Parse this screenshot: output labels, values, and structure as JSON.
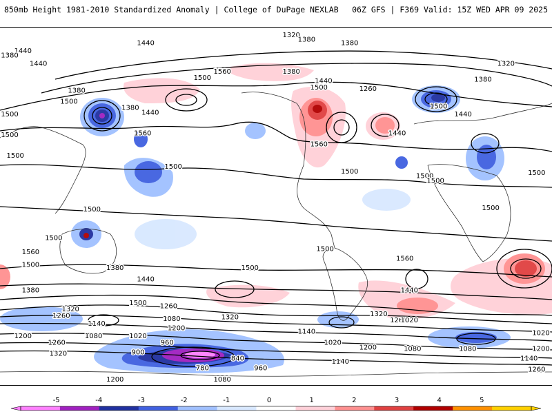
{
  "header": {
    "title_left": "850mb Height 1981-2010 Standardized Anomaly | College of DuPage NEXLAB",
    "title_right": "06Z GFS | F369 Valid: 15Z WED APR 09 2025"
  },
  "colorbar": {
    "ticks": [
      "-5",
      "-4",
      "-3",
      "-2",
      "-1",
      "0",
      "1",
      "2",
      "3",
      "4",
      "5"
    ],
    "colors": [
      "#ff80ff",
      "#a020c0",
      "#2030a0",
      "#4060e0",
      "#a0c0ff",
      "#d8e8ff",
      "#ffffff",
      "#ffd0d8",
      "#ff9090",
      "#e04040",
      "#b00000",
      "#ff9000",
      "#ffd000"
    ]
  },
  "map": {
    "contour_labels": [
      {
        "text": "1320",
        "lon": 10,
        "lat": 84
      },
      {
        "text": "1380",
        "lon": 20,
        "lat": 81
      },
      {
        "text": "1440",
        "lon": -85,
        "lat": 79
      },
      {
        "text": "1440",
        "lon": -165,
        "lat": 74
      },
      {
        "text": "1380",
        "lon": -180,
        "lat": 71
      },
      {
        "text": "1320",
        "lon": 150,
        "lat": 66
      },
      {
        "text": "1440",
        "lon": -155,
        "lat": 66
      },
      {
        "text": "1380",
        "lon": 135,
        "lat": 56
      },
      {
        "text": "1500",
        "lon": -135,
        "lat": 42
      },
      {
        "text": "1380",
        "lon": -130,
        "lat": 49
      },
      {
        "text": "1500",
        "lon": 106,
        "lat": 39
      },
      {
        "text": "1440",
        "lon": 122,
        "lat": 34
      },
      {
        "text": "1380",
        "lon": -95,
        "lat": 38
      },
      {
        "text": "1440",
        "lon": -82,
        "lat": 35
      },
      {
        "text": "1560",
        "lon": -87,
        "lat": 22
      },
      {
        "text": "1500",
        "lon": -48,
        "lat": 57
      },
      {
        "text": "1560",
        "lon": -35,
        "lat": 61
      },
      {
        "text": "1380",
        "lon": 10,
        "lat": 61
      },
      {
        "text": "1440",
        "lon": 31,
        "lat": 55
      },
      {
        "text": "1500",
        "lon": 28,
        "lat": 51
      },
      {
        "text": "1380",
        "lon": 48,
        "lat": 79
      },
      {
        "text": "1260",
        "lon": 60,
        "lat": 50
      },
      {
        "text": "1440",
        "lon": 79,
        "lat": 22
      },
      {
        "text": "1560",
        "lon": 28,
        "lat": 15
      },
      {
        "text": "1500",
        "lon": 48,
        "lat": -2
      },
      {
        "text": "1500",
        "lon": 97,
        "lat": -5
      },
      {
        "text": "1500",
        "lon": 104,
        "lat": -8
      },
      {
        "text": "1500",
        "lon": -67,
        "lat": 1
      },
      {
        "text": "1500",
        "lon": -120,
        "lat": -26
      },
      {
        "text": "1500",
        "lon": -145,
        "lat": -44
      },
      {
        "text": "1500",
        "lon": 140,
        "lat": -25
      },
      {
        "text": "1500",
        "lon": 32,
        "lat": -51
      },
      {
        "text": "1500",
        "lon": -17,
        "lat": -63
      },
      {
        "text": "1500",
        "lon": -160,
        "lat": -61
      },
      {
        "text": "1560",
        "lon": 84,
        "lat": -57
      },
      {
        "text": "1560",
        "lon": -160,
        "lat": -53
      },
      {
        "text": "1440",
        "lon": 87,
        "lat": -77
      },
      {
        "text": "1440",
        "lon": -85,
        "lat": -70
      },
      {
        "text": "1380",
        "lon": -105,
        "lat": -63
      },
      {
        "text": "1380",
        "lon": -160,
        "lat": -77
      },
      {
        "text": "1500",
        "lon": -90,
        "lat": -85
      },
      {
        "text": "1320",
        "lon": 67,
        "lat": -92
      },
      {
        "text": "1260",
        "lon": 80,
        "lat": -96
      },
      {
        "text": "1320",
        "lon": -134,
        "lat": -89
      },
      {
        "text": "1260",
        "lon": -140,
        "lat": -93
      },
      {
        "text": "1140",
        "lon": -117,
        "lat": -98
      },
      {
        "text": "1200",
        "lon": -65,
        "lat": -101
      },
      {
        "text": "1320",
        "lon": -30,
        "lat": -94
      },
      {
        "text": "1260",
        "lon": -70,
        "lat": -87
      },
      {
        "text": "1140",
        "lon": 20,
        "lat": -103
      },
      {
        "text": "1020",
        "lon": 87,
        "lat": -96
      },
      {
        "text": "1020",
        "lon": 175,
        "lat": -104
      },
      {
        "text": "1080",
        "lon": 89,
        "lat": -114
      },
      {
        "text": "1200",
        "lon": -165,
        "lat": -106
      },
      {
        "text": "1260",
        "lon": -143,
        "lat": -110
      },
      {
        "text": "1320",
        "lon": -142,
        "lat": -117
      },
      {
        "text": "1080",
        "lon": -119,
        "lat": -106
      },
      {
        "text": "1020",
        "lon": -90,
        "lat": -106
      },
      {
        "text": "1080",
        "lon": -68,
        "lat": -95
      },
      {
        "text": "960",
        "lon": -71,
        "lat": -110
      },
      {
        "text": "900",
        "lon": -90,
        "lat": -116
      },
      {
        "text": "840",
        "lon": -25,
        "lat": -120
      },
      {
        "text": "780",
        "lon": -48,
        "lat": -126
      },
      {
        "text": "960",
        "lon": -10,
        "lat": -126
      },
      {
        "text": "1080",
        "lon": -35,
        "lat": -134
      },
      {
        "text": "1200",
        "lon": -105,
        "lat": -134
      },
      {
        "text": "1020",
        "lon": 37,
        "lat": -110
      },
      {
        "text": "1200",
        "lon": 60,
        "lat": -113
      },
      {
        "text": "1080",
        "lon": 125,
        "lat": -114
      },
      {
        "text": "1140",
        "lon": 165,
        "lat": -120
      },
      {
        "text": "1260",
        "lon": 170,
        "lat": -127
      },
      {
        "text": "1200",
        "lon": 177,
        "lat": -114
      },
      {
        "text": "1140",
        "lon": 42,
        "lat": -122
      },
      {
        "text": "1500",
        "lon": -177,
        "lat": 34
      },
      {
        "text": "1500",
        "lon": -175,
        "lat": 21
      },
      {
        "text": "1500",
        "lon": -170,
        "lat": 8
      },
      {
        "text": "1500",
        "lon": 170,
        "lat": -3
      }
    ]
  }
}
